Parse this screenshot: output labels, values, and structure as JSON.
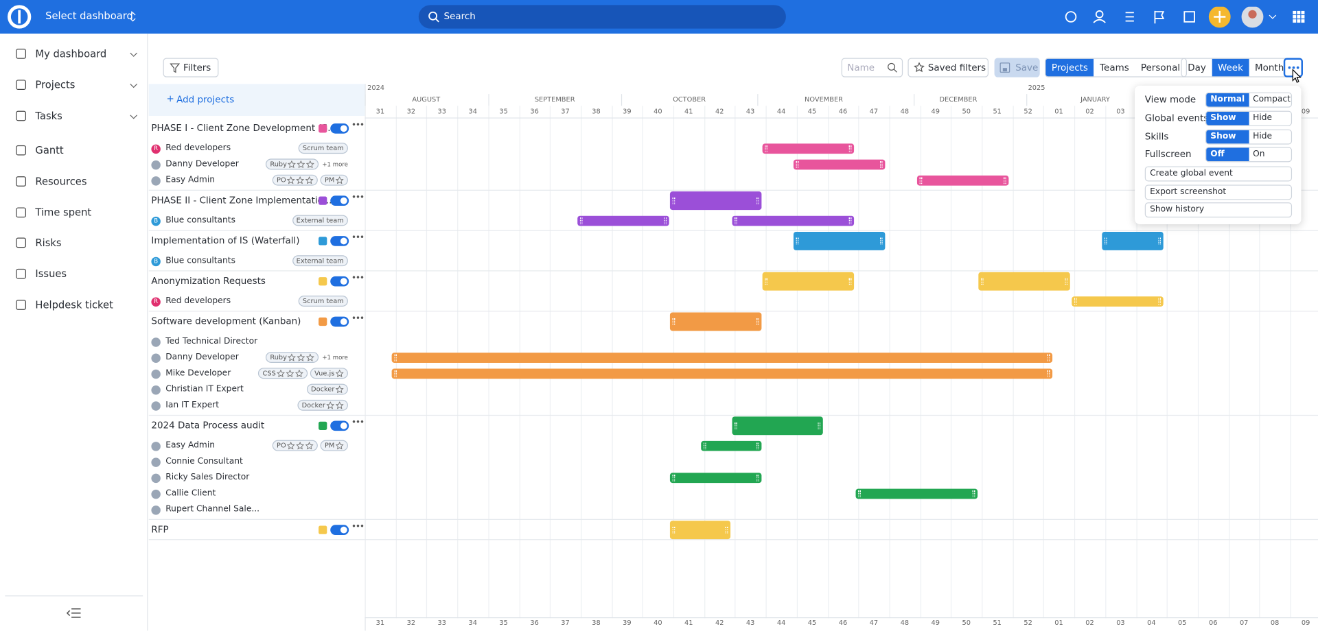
{
  "header": {
    "dashboard": "Select dashboard",
    "search": "Search"
  },
  "sidebar": {
    "items": [
      "My dashboard",
      "Projects",
      "Tasks",
      "Gantt",
      "Resources",
      "Time spent",
      "Risks",
      "Issues",
      "Helpdesk ticket"
    ]
  },
  "toolbar": {
    "filters": "Filters",
    "name_placeholder": "Name",
    "saved_filters": "Saved filters",
    "save": "Save",
    "views": [
      "Projects",
      "Teams",
      "Personal"
    ],
    "scales": [
      "Day",
      "Week",
      "Month"
    ]
  },
  "panel": {
    "add_projects": "Add projects",
    "projects": [
      {
        "name": "PHASE I - Client Zone Development (S...",
        "color": "#e8559c",
        "members": [
          {
            "initial": "R",
            "name": "Red developers",
            "tags": [
              {
                "text": "Scrum team"
              }
            ]
          },
          {
            "name": "Danny Developer",
            "tags": [
              {
                "text": "Ruby",
                "stars": 3
              }
            ],
            "more": "+1 more"
          },
          {
            "name": "Easy Admin",
            "tags": [
              {
                "text": "PO",
                "stars": 3
              },
              {
                "text": "PM",
                "stars": 1
              }
            ]
          }
        ]
      },
      {
        "name": "PHASE II - Client Zone Implementatio...",
        "color": "#9b4fd8",
        "members": [
          {
            "initial": "B",
            "name": "Blue consultants",
            "tags": [
              {
                "text": "External team"
              }
            ]
          }
        ]
      },
      {
        "name": "Implementation of IS (Waterfall)",
        "color": "#2e9ad8",
        "members": [
          {
            "initial": "B",
            "name": "Blue consultants",
            "tags": [
              {
                "text": "External team"
              }
            ]
          }
        ]
      },
      {
        "name": "Anonymization Requests",
        "color": "#f5c84c",
        "members": [
          {
            "initial": "R",
            "name": "Red developers",
            "tags": [
              {
                "text": "Scrum team"
              }
            ]
          }
        ]
      },
      {
        "name": "Software development (Kanban)",
        "color": "#f29a45",
        "members": [
          {
            "name": "Ted Technical Director",
            "tags": []
          },
          {
            "name": "Danny Developer",
            "tags": [
              {
                "text": "Ruby",
                "stars": 3
              }
            ],
            "more": "+1 more"
          },
          {
            "name": "Mike Developer",
            "tags": [
              {
                "text": "CSS",
                "stars": 3
              },
              {
                "text": "Vue.js",
                "stars": 1
              }
            ]
          },
          {
            "name": "Christian IT Expert",
            "tags": [
              {
                "text": "Docker",
                "stars": 1
              }
            ]
          },
          {
            "name": "Ian IT Expert",
            "tags": [
              {
                "text": "Docker",
                "stars": 2
              }
            ]
          }
        ]
      },
      {
        "name": "2024 Data Process audit",
        "color": "#22a652",
        "members": [
          {
            "name": "Easy Admin",
            "tags": [
              {
                "text": "PO",
                "stars": 3
              },
              {
                "text": "PM",
                "stars": 1
              }
            ]
          },
          {
            "name": "Connie Consultant",
            "tags": []
          },
          {
            "name": "Ricky Sales Director",
            "tags": []
          },
          {
            "name": "Callie Client",
            "tags": []
          },
          {
            "name": "Rupert Channel Sale...",
            "tags": []
          }
        ]
      },
      {
        "name": "RFP",
        "color": "#f5c84c",
        "members": []
      }
    ]
  },
  "timeline": {
    "years": [
      "2024",
      "2025"
    ],
    "months": [
      "AUGUST",
      "SEPTEMBER",
      "OCTOBER",
      "NOVEMBER",
      "DECEMBER",
      "JANUARY"
    ],
    "weeks": [
      "31",
      "32",
      "33",
      "34",
      "35",
      "36",
      "37",
      "38",
      "39",
      "40",
      "41",
      "42",
      "43",
      "44",
      "45",
      "46",
      "47",
      "48",
      "49",
      "50",
      "51",
      "52",
      "01",
      "02",
      "03",
      "04",
      "05",
      "06",
      "07",
      "08",
      "09"
    ]
  },
  "menu": {
    "options": [
      {
        "label": "View mode",
        "choices": [
          "Normal",
          "Compact"
        ]
      },
      {
        "label": "Global events",
        "choices": [
          "Show",
          "Hide"
        ]
      },
      {
        "label": "Skills",
        "choices": [
          "Show",
          "Hide"
        ]
      },
      {
        "label": "Fullscreen",
        "choices": [
          "Off",
          "On"
        ]
      }
    ],
    "actions": [
      "Create global event",
      "Export screenshot",
      "Show history"
    ]
  }
}
